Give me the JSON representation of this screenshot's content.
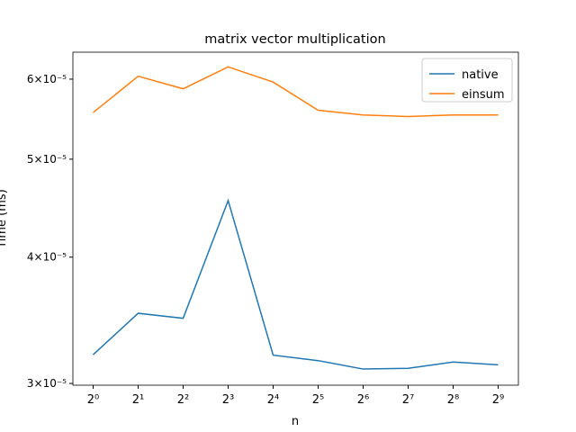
{
  "chart_data": {
    "type": "line",
    "title": "matrix vector multiplication",
    "xlabel": "n",
    "ylabel": "Time (ms)",
    "x": [
      1,
      2,
      4,
      8,
      16,
      32,
      64,
      128,
      256,
      512
    ],
    "series": [
      {
        "name": "native",
        "color": "#1f77b4",
        "values": [
          3.203e-05,
          3.52e-05,
          3.48e-05,
          4.55e-05,
          3.2e-05,
          3.16e-05,
          3.1e-05,
          3.105e-05,
          3.15e-05,
          3.13e-05
        ]
      },
      {
        "name": "einsum",
        "color": "#ff7f0e",
        "values": [
          5.56e-05,
          6.04e-05,
          5.87e-05,
          6.17e-05,
          5.96e-05,
          5.59e-05,
          5.53e-05,
          5.51e-05,
          5.53e-05,
          5.53e-05
        ]
      }
    ],
    "xscale": "log2",
    "yscale": "log",
    "xlim": [
      0.732,
      699.4
    ],
    "ylim": [
      2.988e-05,
      6.38e-05
    ],
    "xticks": [
      {
        "value": 1,
        "label": "2⁰"
      },
      {
        "value": 2,
        "label": "2¹"
      },
      {
        "value": 4,
        "label": "2²"
      },
      {
        "value": 8,
        "label": "2³"
      },
      {
        "value": 16,
        "label": "2⁴"
      },
      {
        "value": 32,
        "label": "2⁵"
      },
      {
        "value": 64,
        "label": "2⁶"
      },
      {
        "value": 128,
        "label": "2⁷"
      },
      {
        "value": 256,
        "label": "2⁸"
      },
      {
        "value": 512,
        "label": "2⁹"
      }
    ],
    "yticks": [
      {
        "value": 3e-05,
        "label": "3×10⁻⁵"
      },
      {
        "value": 4e-05,
        "label": "4×10⁻⁵"
      },
      {
        "value": 5e-05,
        "label": "5×10⁻⁵"
      },
      {
        "value": 6e-05,
        "label": "6×10⁻⁵"
      }
    ],
    "legend": "upper right"
  }
}
